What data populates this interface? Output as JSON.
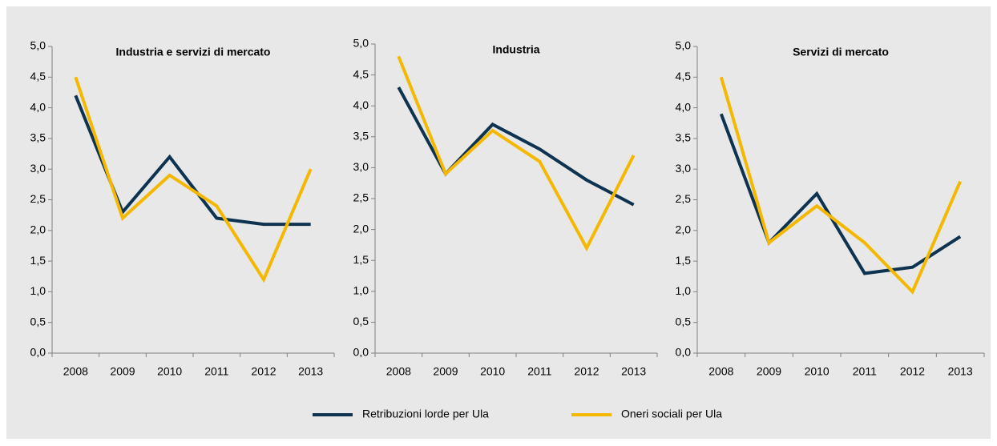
{
  "chart_data": [
    {
      "type": "line",
      "title": "Industria e servizi di mercato",
      "categories": [
        "2008",
        "2009",
        "2010",
        "2011",
        "2012",
        "2013"
      ],
      "series": [
        {
          "name": "Retribuzioni lorde per Ula",
          "color": "#0d3350",
          "values": [
            4.2,
            2.3,
            3.2,
            2.2,
            2.1,
            2.1
          ]
        },
        {
          "name": "Oneri sociali per Ula",
          "color": "#f5b800",
          "values": [
            4.5,
            2.2,
            2.9,
            2.4,
            1.2,
            3.0
          ]
        }
      ],
      "ylim": [
        0,
        5
      ],
      "yticks": [
        {
          "value": 0,
          "label": "0,0"
        },
        {
          "value": 0.5,
          "label": "0,5"
        },
        {
          "value": 1,
          "label": "1,0"
        },
        {
          "value": 1.5,
          "label": "1,5"
        },
        {
          "value": 2,
          "label": "2,0"
        },
        {
          "value": 2.5,
          "label": "2,5"
        },
        {
          "value": 3,
          "label": "3,0"
        },
        {
          "value": 3.5,
          "label": "3,5"
        },
        {
          "value": 4,
          "label": "4,0"
        },
        {
          "value": 4.5,
          "label": "4,5"
        },
        {
          "value": 5,
          "label": "5,0"
        }
      ]
    },
    {
      "type": "line",
      "title": "Industria",
      "categories": [
        "2008",
        "2009",
        "2010",
        "2011",
        "2012",
        "2013"
      ],
      "series": [
        {
          "color": "#0d3350",
          "values": [
            4.3,
            2.9,
            3.7,
            3.3,
            2.8,
            2.4
          ]
        },
        {
          "color": "#f5b800",
          "values": [
            4.8,
            2.9,
            3.6,
            3.1,
            1.7,
            3.2
          ]
        }
      ],
      "ylim": [
        0,
        5
      ],
      "yticks": [
        {
          "value": 0,
          "label": "0,0"
        },
        {
          "value": 0.5,
          "label": "0,5"
        },
        {
          "value": 1,
          "label": "1,0"
        },
        {
          "value": 1.5,
          "label": "1,5"
        },
        {
          "value": 2,
          "label": "2,0"
        },
        {
          "value": 2.5,
          "label": "2,5"
        },
        {
          "value": 3,
          "label": "3,0"
        },
        {
          "value": 3.5,
          "label": "3,5"
        },
        {
          "value": 4,
          "label": "4,0"
        },
        {
          "value": 4.5,
          "label": "4,5"
        },
        {
          "value": 5,
          "label": "5,0"
        }
      ]
    },
    {
      "type": "line",
      "title": "Servizi di mercato",
      "categories": [
        "2008",
        "2009",
        "2010",
        "2011",
        "2012",
        "2013"
      ],
      "series": [
        {
          "color": "#0d3350",
          "values": [
            3.9,
            1.8,
            2.6,
            1.3,
            1.4,
            1.9
          ]
        },
        {
          "color": "#f5b800",
          "values": [
            4.5,
            1.8,
            2.4,
            1.8,
            1.0,
            2.8
          ]
        }
      ],
      "ylim": [
        0,
        5
      ],
      "yticks": [
        {
          "value": 0,
          "label": "0,0"
        },
        {
          "value": 0.5,
          "label": "0,5"
        },
        {
          "value": 1,
          "label": "1,0"
        },
        {
          "value": 1.5,
          "label": "1,5"
        },
        {
          "value": 2,
          "label": "2,0"
        },
        {
          "value": 2.5,
          "label": "2,5"
        },
        {
          "value": 3,
          "label": "3,0"
        },
        {
          "value": 3.5,
          "label": "3,5"
        },
        {
          "value": 4,
          "label": "4,0"
        },
        {
          "value": 4.5,
          "label": "4,5"
        },
        {
          "value": 5,
          "label": "5,0"
        }
      ]
    }
  ]
}
